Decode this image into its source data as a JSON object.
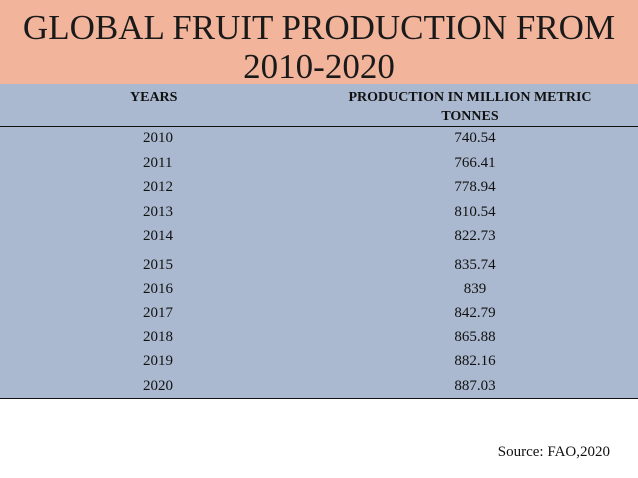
{
  "title": "GLOBAL FRUIT PRODUCTION FROM 2010-2020",
  "table": {
    "headers": {
      "years": "YEARS",
      "production": "PRODUCTION IN MILLION METRIC TONNES"
    },
    "rows": [
      {
        "year": "2010",
        "value": "740.54"
      },
      {
        "year": "2011",
        "value": "766.41"
      },
      {
        "year": "2012",
        "value": "778.94"
      },
      {
        "year": "2013",
        "value": "810.54"
      },
      {
        "year": "2014",
        "value": "822.73"
      },
      {
        "year": "2015",
        "value": "835.74"
      },
      {
        "year": "2016",
        "value": "839"
      },
      {
        "year": "2017",
        "value": "842.79"
      },
      {
        "year": "2018",
        "value": "865.88"
      },
      {
        "year": "2019",
        "value": "882.16"
      },
      {
        "year": "2020",
        "value": "887.03"
      }
    ]
  },
  "source": "Source: FAO,2020",
  "colors": {
    "title_band": "#f2b49b",
    "table_bg": "#aab9d0"
  }
}
